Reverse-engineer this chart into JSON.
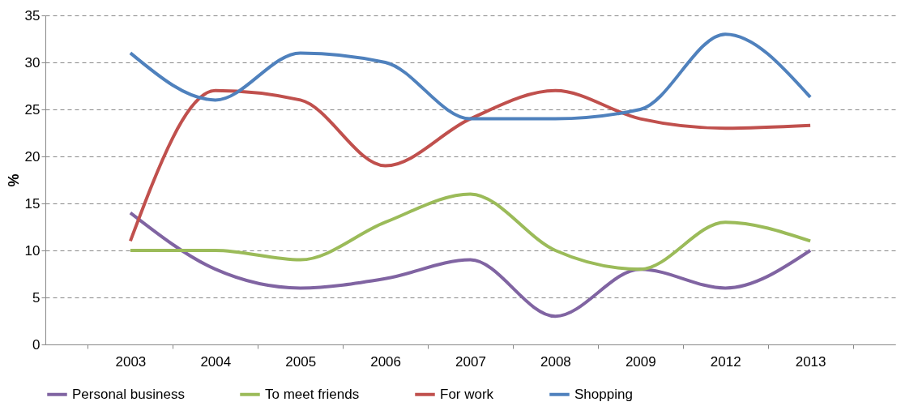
{
  "chart_data": {
    "type": "line",
    "ylabel": "%",
    "categories": [
      "2003",
      "2004",
      "2005",
      "2006",
      "2007",
      "2008",
      "2009",
      "2012",
      "2013"
    ],
    "series": [
      {
        "name": "Personal business",
        "color": "#8064a2",
        "values": [
          14,
          8,
          6,
          7,
          9,
          3,
          8,
          6,
          10
        ]
      },
      {
        "name": "To meet friends",
        "color": "#9bbb59",
        "values": [
          10,
          10,
          9,
          13,
          16,
          10,
          8,
          13,
          11
        ]
      },
      {
        "name": "For work",
        "color": "#c0504d",
        "values": [
          11,
          27,
          26,
          19,
          24,
          27,
          24,
          23,
          23.3
        ]
      },
      {
        "name": "Shopping",
        "color": "#4f81bd",
        "values": [
          31,
          26,
          31,
          30,
          24,
          24,
          25,
          33,
          26.3
        ]
      }
    ],
    "ylim": [
      0,
      35
    ],
    "yticks": [
      0,
      5,
      10,
      15,
      20,
      25,
      30,
      35
    ],
    "grid": "y",
    "legend": "bottom",
    "line_style": "solid"
  }
}
